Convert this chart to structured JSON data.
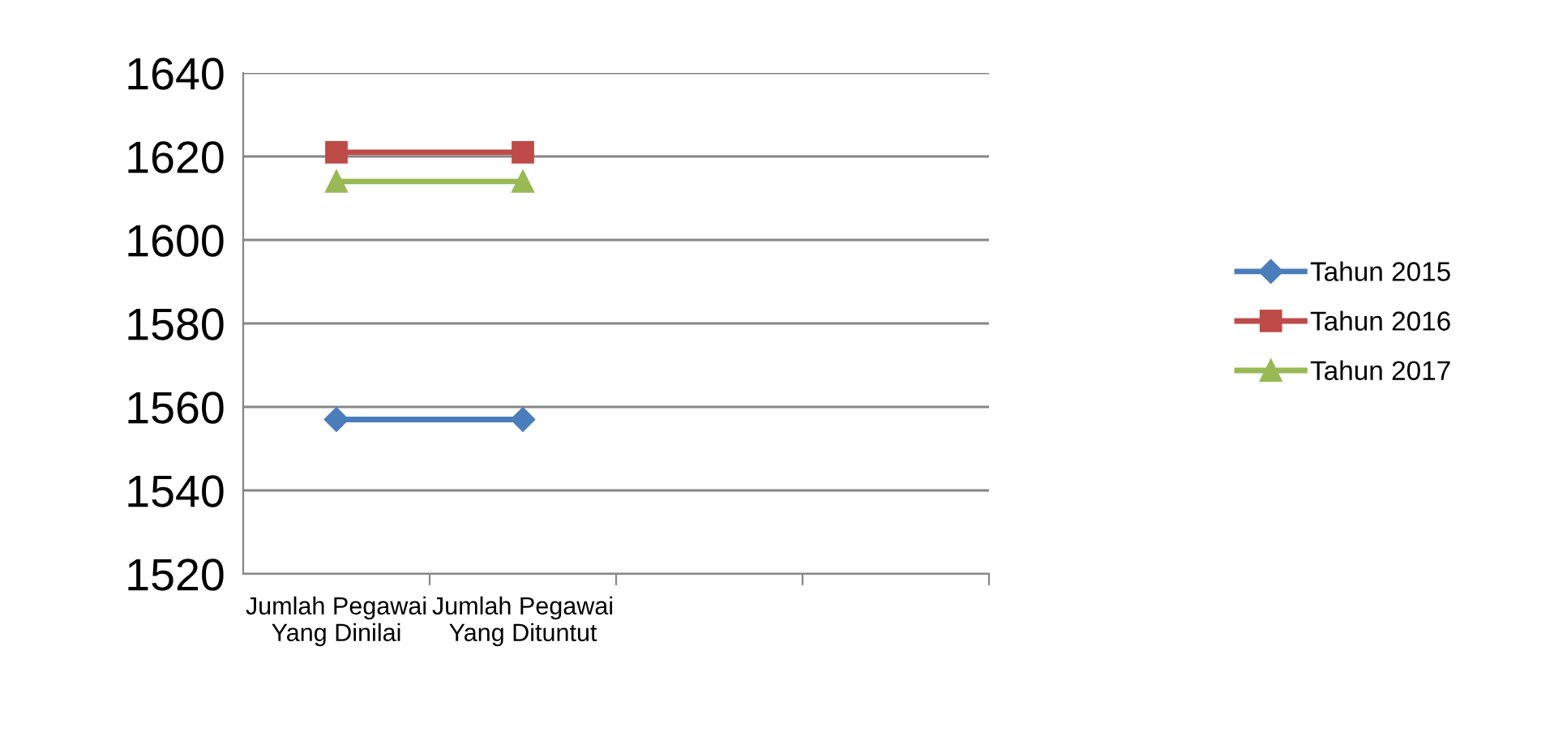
{
  "chart_data": {
    "type": "line",
    "categories": [
      "Jumlah Pegawai Yang Dinilai",
      "Jumlah Pegawai Yang Dituntut",
      null,
      null
    ],
    "series": [
      {
        "name": "Tahun 2015",
        "color": "#4a7ebb",
        "marker": "diamond",
        "values": [
          1557,
          1557,
          null,
          null
        ]
      },
      {
        "name": "Tahun 2016",
        "color": "#be4b48",
        "marker": "square",
        "values": [
          1621,
          1621,
          null,
          null
        ]
      },
      {
        "name": "Tahun 2017",
        "color": "#98b954",
        "marker": "triangle",
        "values": [
          1614,
          1614,
          null,
          null
        ]
      }
    ],
    "ylim": [
      1520,
      1640
    ],
    "yticks": [
      1520,
      1540,
      1560,
      1580,
      1600,
      1620,
      1640
    ],
    "grid": "y",
    "legend": "right"
  }
}
